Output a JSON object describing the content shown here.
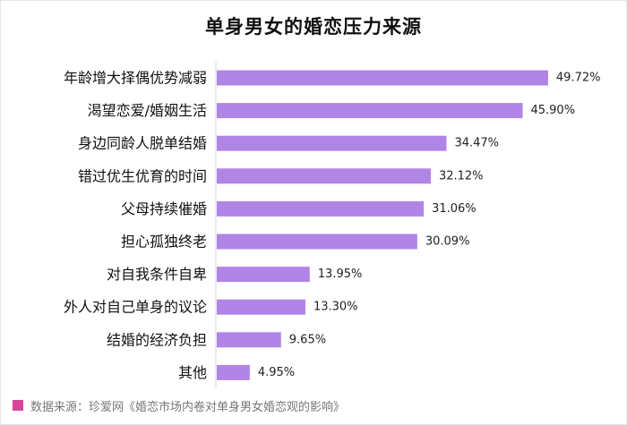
{
  "chart_data": {
    "type": "bar",
    "orientation": "horizontal",
    "title": "单身男女的婚恋压力来源",
    "categories": [
      "年龄增大择偶优势减弱",
      "渴望恋爱/婚姻生活",
      "身边同龄人脱单结婚",
      "错过优生优育的时间",
      "父母持续催婚",
      "担心孤独终老",
      "对自我条件自卑",
      "外人对自己单身的议论",
      "结婚的经济负担",
      "其他"
    ],
    "values": [
      49.72,
      45.9,
      34.47,
      32.12,
      31.06,
      30.09,
      13.95,
      13.3,
      9.65,
      4.95
    ],
    "value_labels": [
      "49.72%",
      "45.90%",
      "34.47%",
      "32.12%",
      "31.06%",
      "30.09%",
      "13.95%",
      "13.30%",
      "9.65%",
      "4.95%"
    ],
    "unit": "%",
    "xlim": [
      0,
      50
    ],
    "grid": false,
    "bar_color": "#b085e6",
    "axis_color": "#d9d9d9"
  },
  "source": {
    "text": "数据来源：珍爱网《婚恋市场内卷对单身男女婚恋观的影响》",
    "marker_color": "#d9459a"
  }
}
